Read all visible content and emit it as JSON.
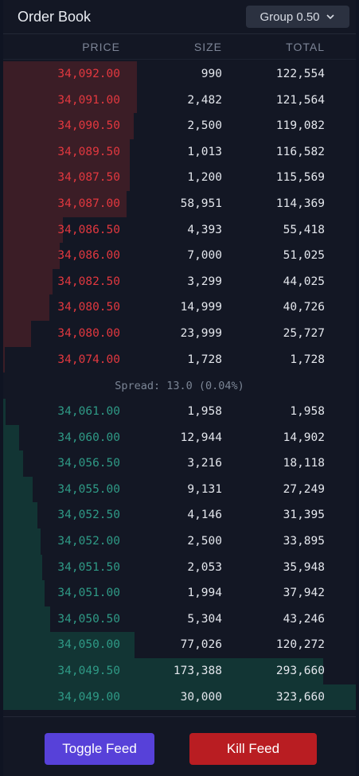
{
  "header": {
    "title": "Order Book",
    "group_label": "Group 0.50"
  },
  "columns": {
    "price": "PRICE",
    "size": "SIZE",
    "total": "TOTAL"
  },
  "asks": [
    {
      "price": "34,092.00",
      "size": "990",
      "total": "122,554",
      "depth": 0.38
    },
    {
      "price": "34,091.00",
      "size": "2,482",
      "total": "121,564",
      "depth": 0.38
    },
    {
      "price": "34,090.50",
      "size": "2,500",
      "total": "119,082",
      "depth": 0.37
    },
    {
      "price": "34,089.50",
      "size": "1,013",
      "total": "116,582",
      "depth": 0.36
    },
    {
      "price": "34,087.50",
      "size": "1,200",
      "total": "115,569",
      "depth": 0.36
    },
    {
      "price": "34,087.00",
      "size": "58,951",
      "total": "114,369",
      "depth": 0.35
    },
    {
      "price": "34,086.50",
      "size": "4,393",
      "total": "55,418",
      "depth": 0.17
    },
    {
      "price": "34,086.00",
      "size": "7,000",
      "total": "51,025",
      "depth": 0.16
    },
    {
      "price": "34,082.50",
      "size": "3,299",
      "total": "44,025",
      "depth": 0.14
    },
    {
      "price": "34,080.50",
      "size": "14,999",
      "total": "40,726",
      "depth": 0.13
    },
    {
      "price": "34,080.00",
      "size": "23,999",
      "total": "25,727",
      "depth": 0.08
    },
    {
      "price": "34,074.00",
      "size": "1,728",
      "total": "1,728",
      "depth": 0.005
    }
  ],
  "spread": {
    "label": "Spread: 13.0 (0.04%)"
  },
  "bids": [
    {
      "price": "34,061.00",
      "size": "1,958",
      "total": "1,958",
      "depth": 0.006
    },
    {
      "price": "34,060.00",
      "size": "12,944",
      "total": "14,902",
      "depth": 0.046
    },
    {
      "price": "34,056.50",
      "size": "3,216",
      "total": "18,118",
      "depth": 0.056
    },
    {
      "price": "34,055.00",
      "size": "9,131",
      "total": "27,249",
      "depth": 0.084
    },
    {
      "price": "34,052.50",
      "size": "4,146",
      "total": "31,395",
      "depth": 0.097
    },
    {
      "price": "34,052.00",
      "size": "2,500",
      "total": "33,895",
      "depth": 0.105
    },
    {
      "price": "34,051.50",
      "size": "2,053",
      "total": "35,948",
      "depth": 0.111
    },
    {
      "price": "34,051.00",
      "size": "1,994",
      "total": "37,942",
      "depth": 0.117
    },
    {
      "price": "34,050.50",
      "size": "5,304",
      "total": "43,246",
      "depth": 0.134
    },
    {
      "price": "34,050.00",
      "size": "77,026",
      "total": "120,272",
      "depth": 0.372
    },
    {
      "price": "34,049.50",
      "size": "173,388",
      "total": "293,660",
      "depth": 0.907
    },
    {
      "price": "34,049.00",
      "size": "30,000",
      "total": "323,660",
      "depth": 1.0
    }
  ],
  "footer": {
    "toggle_label": "Toggle Feed",
    "kill_label": "Kill Feed"
  },
  "colors": {
    "ask": "#e2383f",
    "bid": "#2f9a86",
    "toggle": "#5741d9",
    "kill": "#b91d22"
  }
}
